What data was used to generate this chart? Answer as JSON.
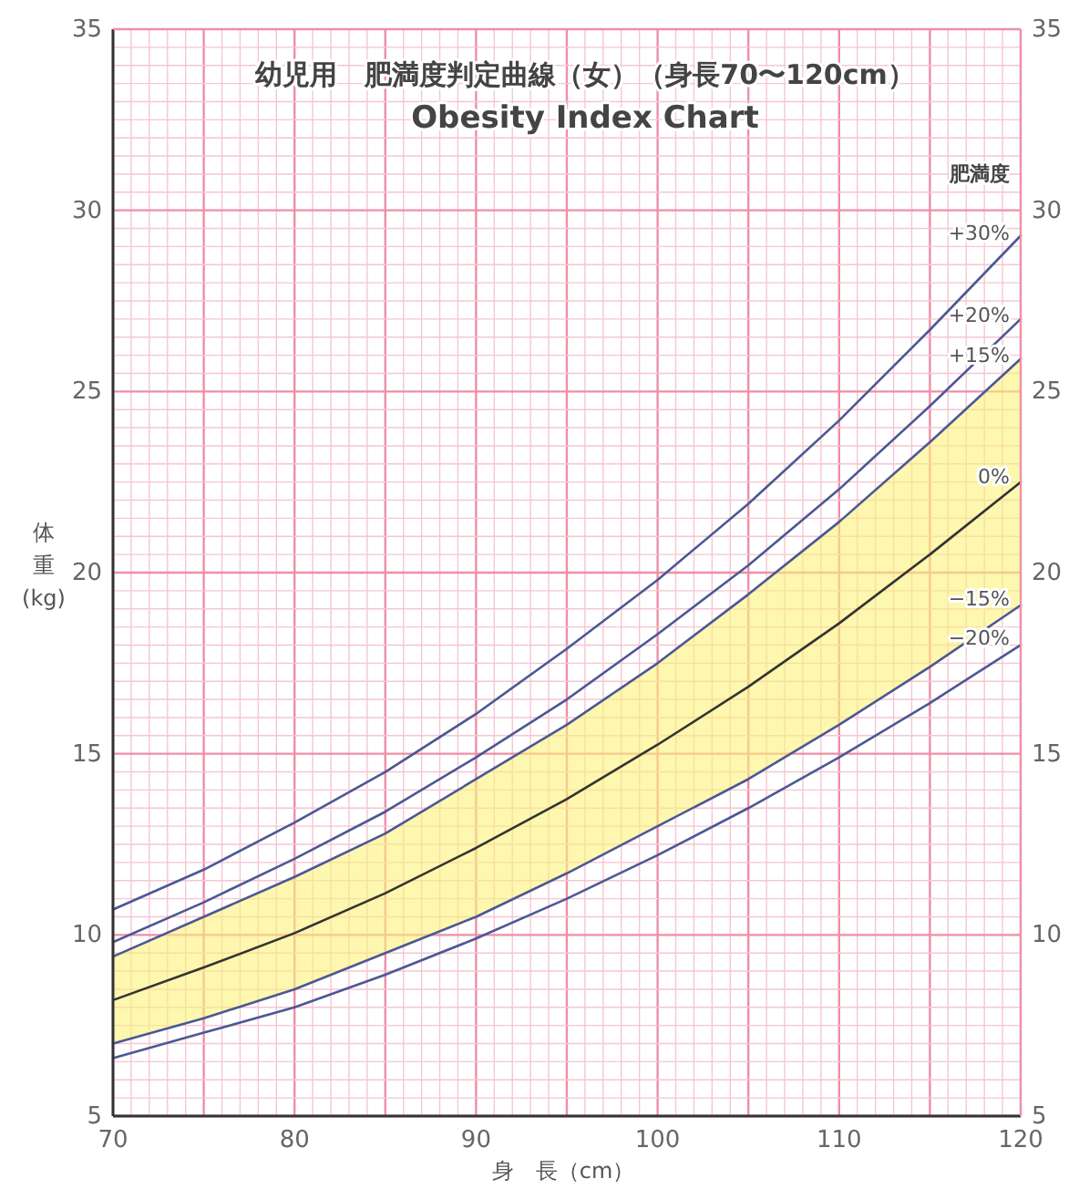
{
  "chart_data": {
    "type": "line",
    "title": "幼児用　肥満度判定曲線（女）（身長70〜120cm）",
    "subtitle": "Obesity Index Chart",
    "xlabel": "身　長（cm）",
    "ylabel": "体重(kg)",
    "legend_title": "肥満度",
    "x": [
      70,
      75,
      80,
      85,
      90,
      95,
      100,
      105,
      110,
      115,
      120
    ],
    "series": [
      {
        "name": "+30%",
        "color": "#4b5894",
        "values": [
          10.7,
          11.8,
          13.1,
          14.5,
          16.1,
          17.9,
          19.8,
          21.9,
          24.2,
          26.7,
          29.3
        ]
      },
      {
        "name": "+20%",
        "color": "#4b5894",
        "values": [
          9.8,
          10.9,
          12.1,
          13.4,
          14.9,
          16.5,
          18.3,
          20.2,
          22.3,
          24.6,
          27.0
        ]
      },
      {
        "name": "+15%",
        "color": "#4b5894",
        "values": [
          9.4,
          10.5,
          11.6,
          12.8,
          14.3,
          15.8,
          17.5,
          19.4,
          21.4,
          23.6,
          25.9
        ]
      },
      {
        "name": "0%",
        "color": "#333333",
        "values": [
          8.2,
          9.1,
          10.05,
          11.15,
          12.4,
          13.75,
          15.25,
          16.85,
          18.6,
          20.5,
          22.5
        ],
        "lower": [
          7.0,
          7.7,
          8.5,
          9.5,
          10.5,
          11.7,
          13.0,
          14.3,
          15.8,
          17.4,
          19.1
        ],
        "upper": [
          9.4,
          10.5,
          11.6,
          12.8,
          14.3,
          15.8,
          17.5,
          19.4,
          21.4,
          23.6,
          25.9
        ]
      },
      {
        "name": "−15%",
        "color": "#4b5894",
        "values": [
          7.0,
          7.7,
          8.5,
          9.5,
          10.5,
          11.7,
          13.0,
          14.3,
          15.8,
          17.4,
          19.1
        ]
      },
      {
        "name": "−20%",
        "color": "#4b5894",
        "values": [
          6.6,
          7.3,
          8.0,
          8.9,
          9.9,
          11.0,
          12.2,
          13.5,
          14.9,
          16.4,
          18.0
        ]
      }
    ],
    "xlim": [
      70,
      120
    ],
    "xticks": [
      70,
      {
        "value": 71,
        "label": null
      },
      {
        "value": 72,
        "label": null
      },
      {
        "value": 73,
        "label": null
      },
      {
        "value": 74,
        "label": null
      },
      {
        "value": 75,
        "label": null
      },
      {
        "value": 76,
        "label": null
      },
      {
        "value": 77,
        "label": null
      },
      {
        "value": 78,
        "label": null
      },
      {
        "value": 79,
        "label": null
      },
      80,
      {
        "value": 81,
        "label": null
      },
      {
        "value": 82,
        "label": null
      },
      {
        "value": 83,
        "label": null
      },
      {
        "value": 84,
        "label": null
      },
      {
        "value": 85,
        "label": null
      },
      {
        "value": 86,
        "label": null
      },
      {
        "value": 87,
        "label": null
      },
      {
        "value": 88,
        "label": null
      },
      {
        "value": 89,
        "label": null
      },
      90,
      {
        "value": 91,
        "label": null
      },
      {
        "value": 92,
        "label": null
      },
      {
        "value": 93,
        "label": null
      },
      {
        "value": 94,
        "label": null
      },
      {
        "value": 95,
        "label": null
      },
      {
        "value": 96,
        "label": null
      },
      {
        "value": 97,
        "label": null
      },
      {
        "value": 98,
        "label": null
      },
      {
        "value": 99,
        "label": null
      },
      100,
      {
        "value": 101,
        "label": null
      },
      {
        "value": 102,
        "label": null
      },
      {
        "value": 103,
        "label": null
      },
      {
        "value": 104,
        "label": null
      },
      {
        "value": 105,
        "label": null
      },
      {
        "value": 106,
        "label": null
      },
      {
        "value": 107,
        "label": null
      },
      {
        "value": 108,
        "label": null
      },
      {
        "value": 109,
        "label": null
      },
      110,
      {
        "value": 111,
        "label": null
      },
      {
        "value": 112,
        "label": null
      },
      {
        "value": 113,
        "label": null
      },
      {
        "value": 114,
        "label": null
      },
      {
        "value": 115,
        "label": null
      },
      {
        "value": 116,
        "label": null
      },
      {
        "value": 117,
        "label": null
      },
      {
        "value": 118,
        "label": null
      },
      {
        "value": 119,
        "label": null
      },
      120
    ],
    "ylim": [
      5,
      35
    ],
    "yticks": [
      5,
      {
        "value": 5.5,
        "label": null
      },
      {
        "value": 6,
        "label": null
      },
      {
        "value": 6.5,
        "label": null
      },
      {
        "value": 7,
        "label": null
      },
      {
        "value": 7.5,
        "label": null
      },
      {
        "value": 8,
        "label": null
      },
      {
        "value": 8.5,
        "label": null
      },
      {
        "value": 9,
        "label": null
      },
      {
        "value": 9.5,
        "label": null
      },
      10,
      {
        "value": 10.5,
        "label": null
      },
      {
        "value": 11,
        "label": null
      },
      {
        "value": 11.5,
        "label": null
      },
      {
        "value": 12,
        "label": null
      },
      {
        "value": 12.5,
        "label": null
      },
      {
        "value": 13,
        "label": null
      },
      {
        "value": 13.5,
        "label": null
      },
      {
        "value": 14,
        "label": null
      },
      {
        "value": 14.5,
        "label": null
      },
      15,
      {
        "value": 15.5,
        "label": null
      },
      {
        "value": 16,
        "label": null
      },
      {
        "value": 16.5,
        "label": null
      },
      {
        "value": 17,
        "label": null
      },
      {
        "value": 17.5,
        "label": null
      },
      {
        "value": 18,
        "label": null
      },
      {
        "value": 18.5,
        "label": null
      },
      {
        "value": 19,
        "label": null
      },
      {
        "value": 19.5,
        "label": null
      },
      20,
      {
        "value": 20.5,
        "label": null
      },
      {
        "value": 21,
        "label": null
      },
      {
        "value": 21.5,
        "label": null
      },
      {
        "value": 22,
        "label": null
      },
      {
        "value": 22.5,
        "label": null
      },
      {
        "value": 23,
        "label": null
      },
      {
        "value": 23.5,
        "label": null
      },
      {
        "value": 24,
        "label": null
      },
      {
        "value": 24.5,
        "label": null
      },
      25,
      {
        "value": 25.5,
        "label": null
      },
      {
        "value": 26,
        "label": null
      },
      {
        "value": 26.5,
        "label": null
      },
      {
        "value": 27,
        "label": null
      },
      {
        "value": 27.5,
        "label": null
      },
      {
        "value": 28,
        "label": null
      },
      {
        "value": 28.5,
        "label": null
      },
      {
        "value": 29,
        "label": null
      },
      {
        "value": 29.5,
        "label": null
      },
      30,
      {
        "value": 30.5,
        "label": null
      },
      {
        "value": 31,
        "label": null
      },
      {
        "value": 31.5,
        "label": null
      },
      {
        "value": 32,
        "label": null
      },
      {
        "value": 32.5,
        "label": null
      },
      {
        "value": 33,
        "label": null
      },
      {
        "value": 33.5,
        "label": null
      },
      {
        "value": 34,
        "label": null
      },
      {
        "value": 34.5,
        "label": null
      },
      35
    ],
    "y2lim": [
      5,
      35
    ],
    "y2ticks": [
      5,
      10,
      15,
      20,
      25,
      30,
      35
    ],
    "grid": true,
    "legend": false,
    "marker": "none",
    "line_style": "solid"
  }
}
